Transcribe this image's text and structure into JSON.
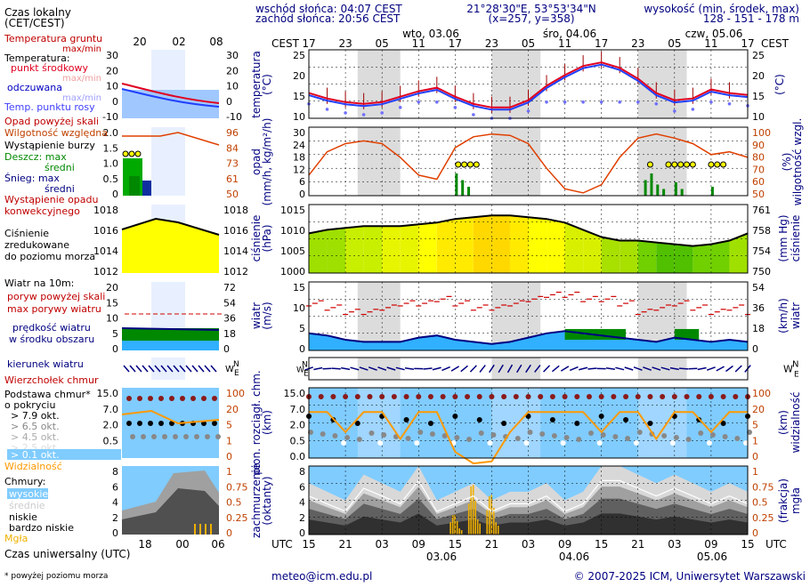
{
  "header": {
    "sunrise": "wschód słońca: 04:07 CEST",
    "sunset": "zachód słońca: 20:56 CEST",
    "coords": "21°28'30\"E, 53°53'34\"N",
    "grid": "(x=257,  y=358)",
    "elev_title": "wysokość (min, środek, max)",
    "elev_values": "128 - 151 - 178 m",
    "cest": "CEST",
    "utc": "UTC",
    "days_top": [
      "wto, 03.06",
      "śro, 04.06",
      "czw, 05.06"
    ],
    "days_bottom": [
      "03.06",
      "04.06",
      "05.06"
    ],
    "hours_cest": [
      "17",
      "23",
      "05",
      "11",
      "17",
      "23",
      "05",
      "11",
      "17",
      "23",
      "05",
      "11",
      "17"
    ],
    "hours_utc": [
      "15",
      "21",
      "03",
      "09",
      "15",
      "21",
      "03",
      "09",
      "15",
      "21",
      "03",
      "09",
      "15"
    ]
  },
  "legend": {
    "time_local": "Czas lokalny",
    "time_local2": "(CET/CEST)",
    "legend_hours_top": [
      "20",
      "02",
      "08"
    ],
    "legend_hours_bottom": [
      "18",
      "00",
      "06"
    ],
    "time_utc": "Czas uniwersalny (UTC)",
    "footnote": "* powyżej poziomu morza",
    "temp": [
      "Temperatura gruntu",
      "max/min",
      "Temperatura:",
      "punkt środkowy",
      "max/min",
      "odczuwana",
      "max/min",
      "Temp. punktu rosy"
    ],
    "precip": [
      "Opad powyżej skali",
      "Wilgotność względna",
      "Wystąpienie burzy",
      "Deszcz: max",
      "średni",
      "Śnieg: max",
      "średni",
      "Wystąpienie opadu",
      "konwekcyjnego"
    ],
    "pressure": [
      "Ciśnienie",
      "zredukowane",
      "do poziomu morza"
    ],
    "wind": [
      "Wiatr na 10m:",
      "poryw powyżej skali",
      "max porywy wiatru",
      "prędkość wiatru",
      "w środku obszaru"
    ],
    "winddir": "kierunek wiatru",
    "cloudbase": [
      "Wierzchołek chmur",
      "Podstawa chmur*",
      "o pokryciu",
      "> 7.9 okt.",
      "> 6.5 okt.",
      "> 4.5 okt.",
      "> 2.5 okt.",
      "> 0.1 okt.",
      "Widzialność"
    ],
    "clouds": [
      "Chmury:",
      "wysokie",
      "średnie",
      "niskie",
      "bardzo niskie",
      "Mgła"
    ]
  },
  "panels": {
    "temp": {
      "y1": "temperatura",
      "y2": "(°C)",
      "r1": "(°C)",
      "ticks": [
        "25",
        "20",
        "15",
        "10"
      ],
      "legend_ticks": [
        "30",
        "20",
        "10",
        "0",
        "-10"
      ]
    },
    "precip": {
      "y1": "opad",
      "y2": "(mm/h, kg/m²/h)",
      "r1": "wilgotność wzgl.",
      "r2": "(%)",
      "ticks": [
        "30",
        "24",
        "18",
        "12",
        "6",
        "0"
      ],
      "rticks": [
        "100",
        "90",
        "80",
        "70",
        "60",
        "50"
      ],
      "legend_ticks": [
        "2.0",
        "1.5",
        "1.0",
        "0.5",
        "0"
      ],
      "legend_rticks": [
        "96",
        "84",
        "73",
        "61",
        "50"
      ]
    },
    "pressure": {
      "y1": "ciśnienie",
      "y2": "(hPa)",
      "r1": "(mm Hg)",
      "r2": "ciśnienie",
      "ticks": [
        "1015",
        "1010",
        "1005",
        "1000"
      ],
      "rticks": [
        "761",
        "758",
        "754",
        "750"
      ],
      "legend_ticks": [
        "1018",
        "1016",
        "1014",
        "1012"
      ]
    },
    "wind": {
      "y1": "wiatr",
      "y2": "(m/s)",
      "r1": "(km/h)",
      "r2": "wiatr",
      "ticks": [
        "15",
        "10",
        "5",
        "0"
      ],
      "rticks": [
        "54",
        "36",
        "18",
        "0"
      ],
      "legend_ticks": [
        "20",
        "15",
        "10",
        "5",
        "0"
      ],
      "legend_rticks": [
        "72",
        "54",
        "36",
        "18",
        "0"
      ]
    },
    "cloudbase": {
      "y1": "pion. rozciągł. chm.",
      "y2": "(km)",
      "r1": "(km)",
      "r2": "widzialność",
      "ticks": [
        "15.0",
        "7.0",
        "2.0",
        "0.5",
        "0.0"
      ],
      "rticks": [
        "100",
        "20",
        "5",
        "1",
        "0"
      ]
    },
    "clouds": {
      "y1": "zachmurzenie",
      "y2": "(oktanty)",
      "r1": "(frakcja)",
      "r2": "mgła",
      "ticks": [
        "8",
        "6",
        "4",
        "2",
        "0"
      ],
      "rticks": [
        "1",
        "0.75",
        "0.5",
        "0.25",
        "0"
      ]
    }
  },
  "footer": {
    "email": "meteo@icm.edu.pl",
    "copyright": "© 2007-2025 ICM, Uniwersytet Warszawski"
  },
  "chart_data": {
    "type": "line",
    "x": [
      0,
      3,
      6,
      9,
      12,
      15,
      18,
      21,
      24,
      27,
      30,
      33,
      36,
      39,
      42,
      45,
      48,
      51,
      54,
      57,
      60,
      63,
      66,
      69,
      72
    ],
    "temperature": [
      15,
      13.5,
      12.5,
      12,
      12.5,
      14,
      15.5,
      16.5,
      14,
      12,
      11,
      11,
      13,
      17,
      20,
      22.5,
      23.5,
      22,
      19,
      15,
      13,
      13.5,
      16,
      15,
      14.5
    ],
    "humidity": [
      65,
      82,
      88,
      90,
      88,
      78,
      65,
      62,
      85,
      93,
      95,
      94,
      88,
      70,
      55,
      52,
      58,
      78,
      92,
      95,
      92,
      88,
      80,
      82,
      78
    ],
    "pressure": [
      1011,
      1012,
      1012.5,
      1013,
      1013,
      1013,
      1013.5,
      1014,
      1015,
      1015.5,
      1016,
      1016,
      1015.5,
      1015,
      1014,
      1012,
      1010,
      1009,
      1009,
      1008.5,
      1008,
      1007.5,
      1008,
      1009,
      1011
    ],
    "wind_speed": [
      4,
      3.5,
      2.5,
      2,
      2,
      2,
      3,
      3.5,
      2.5,
      2,
      1.5,
      2,
      3,
      4,
      4.5,
      4,
      3.5,
      3,
      2.5,
      2,
      3,
      2.5,
      2,
      2.5,
      2
    ],
    "wind_gust": [
      11,
      10,
      9,
      9,
      10,
      11,
      11,
      12,
      11,
      10,
      10,
      11,
      12,
      13,
      13,
      12,
      12,
      11,
      9,
      10,
      11,
      10,
      9,
      10,
      9
    ],
    "visibility": [
      20,
      20,
      5,
      20,
      20,
      3,
      20,
      20,
      1,
      0.2,
      0.3,
      5,
      20,
      20,
      20,
      20,
      5,
      20,
      20,
      3,
      20,
      20,
      5,
      20,
      20
    ],
    "cloud_total": [
      5,
      4,
      3,
      6,
      5,
      4,
      7,
      3,
      4,
      5,
      3,
      4,
      4,
      5,
      3,
      4,
      7,
      7,
      6,
      5,
      6,
      5,
      4,
      5,
      4
    ],
    "fog": [
      0,
      0,
      0,
      0,
      0,
      0,
      0,
      0,
      0.3,
      0.75,
      0.6,
      0,
      0,
      0,
      0,
      0,
      0,
      0,
      0,
      0,
      0,
      0,
      0,
      0,
      0
    ]
  }
}
